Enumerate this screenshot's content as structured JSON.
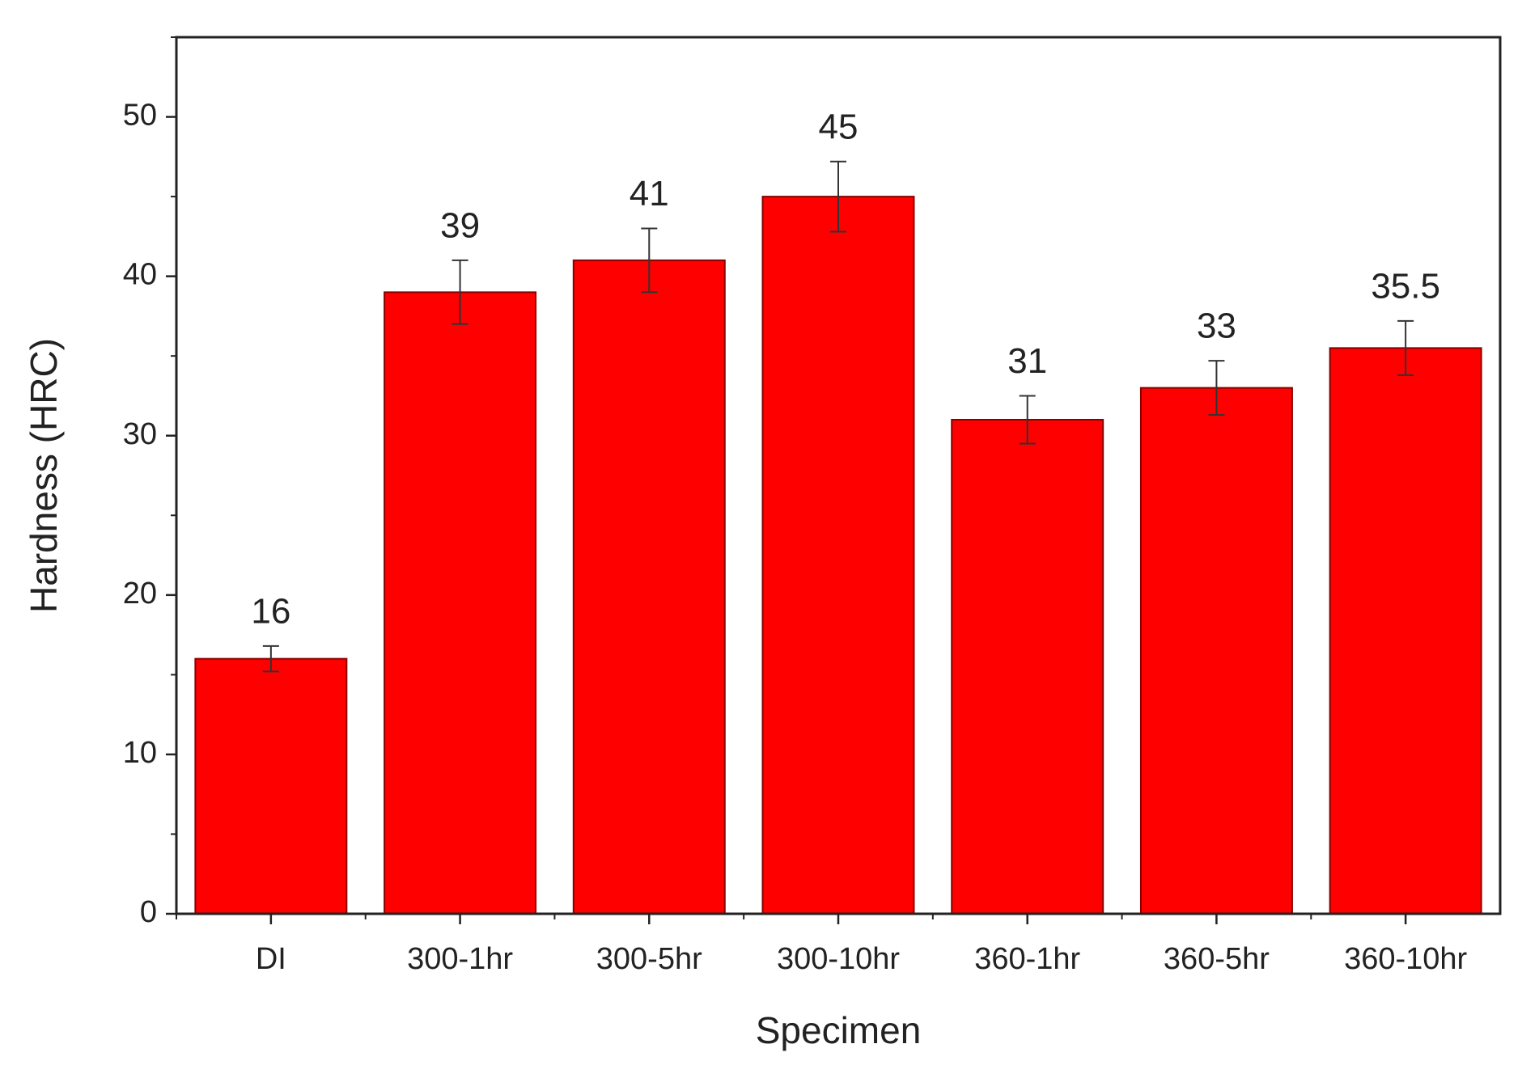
{
  "chart_data": {
    "type": "bar",
    "x_label": "Specimen",
    "y_label": "Hardness (HRC)",
    "categories": [
      "DI",
      "300-1hr",
      "300-5hr",
      "300-10hr",
      "360-1hr",
      "360-5hr",
      "360-10hr"
    ],
    "values": [
      16,
      39,
      41,
      45,
      31,
      33,
      35.5
    ],
    "errors": [
      0.8,
      2,
      2,
      2.2,
      1.5,
      1.7,
      1.7
    ],
    "color": "#ff0000",
    "ylim": [
      0,
      55
    ],
    "yticks": [
      0,
      10,
      20,
      30,
      40,
      50
    ],
    "grid": false
  }
}
